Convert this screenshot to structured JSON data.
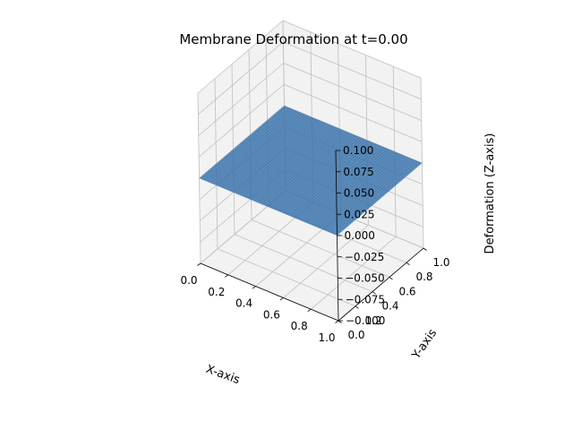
{
  "chart_data": {
    "type": "surface",
    "title": "Membrane Deformation at t=0.00",
    "xlabel": "X-axis",
    "ylabel": "Y-axis",
    "zlabel": "Deformation (Z-axis)",
    "xlim": [
      0,
      1
    ],
    "ylim": [
      0,
      1
    ],
    "zlim": [
      -0.1,
      0.1
    ],
    "x_ticks": [
      "0.0",
      "0.2",
      "0.4",
      "0.6",
      "0.8",
      "1.0"
    ],
    "y_ticks": [
      "0.0",
      "0.2",
      "0.4",
      "0.6",
      "0.8",
      "1.0"
    ],
    "z_ticks": [
      "−0.100",
      "−0.075",
      "−0.050",
      "−0.025",
      "0.000",
      "0.025",
      "0.050",
      "0.075",
      "0.100"
    ],
    "grid": true,
    "surface_z": 0,
    "surface_color": "#3b75af"
  }
}
